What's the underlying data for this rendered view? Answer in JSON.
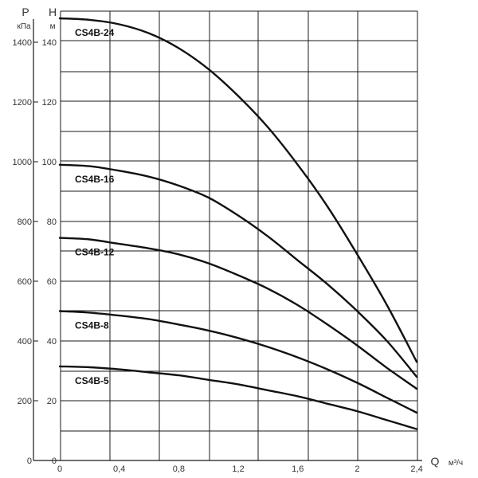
{
  "chart_data": {
    "type": "line",
    "colors": {
      "line": "#111111",
      "grid": "#1a1a1a",
      "background": "#ffffff"
    },
    "x_axis": {
      "label": "Q",
      "unit": "м³/ч",
      "range": [
        0,
        2.4
      ],
      "ticks": [
        "0",
        "0,4",
        "0,8",
        "1,2",
        "1,6",
        "2",
        "2,4"
      ]
    },
    "y_axis_head": {
      "label": "H",
      "unit": "м",
      "range": [
        0,
        150
      ],
      "ticks": [
        "0",
        "20",
        "40",
        "60",
        "80",
        "100",
        "120",
        "140"
      ]
    },
    "y_axis_pressure": {
      "label": "P",
      "unit": "кПа",
      "range": [
        0,
        1500
      ],
      "ticks": [
        "0",
        "200",
        "400",
        "600",
        "800",
        "1000",
        "1200",
        "1400"
      ]
    },
    "grid": true,
    "series": [
      {
        "name": "CS4B-24",
        "x": [
          0,
          0.2,
          0.4,
          0.6,
          0.8,
          1.0,
          1.2,
          1.4,
          1.6,
          1.8,
          2.0,
          2.2,
          2.4
        ],
        "y": [
          148,
          147.5,
          146,
          143,
          138,
          131,
          122,
          111.5,
          99,
          85,
          69,
          52,
          33
        ]
      },
      {
        "name": "CS4B-16",
        "x": [
          0,
          0.2,
          0.4,
          0.6,
          0.8,
          1.0,
          1.2,
          1.4,
          1.6,
          1.8,
          2.0,
          2.2,
          2.4
        ],
        "y": [
          99,
          98.5,
          97,
          95,
          92,
          88,
          82,
          75,
          67,
          59,
          50,
          40,
          28
        ]
      },
      {
        "name": "CS4B-12",
        "x": [
          0,
          0.2,
          0.4,
          0.6,
          0.8,
          1.0,
          1.2,
          1.4,
          1.6,
          1.8,
          2.0,
          2.2,
          2.4
        ],
        "y": [
          74.5,
          74,
          72.5,
          71,
          69,
          66,
          62,
          57.5,
          52,
          45.5,
          38.5,
          31,
          24
        ]
      },
      {
        "name": "CS4B-8",
        "x": [
          0,
          0.2,
          0.4,
          0.6,
          0.8,
          1.0,
          1.2,
          1.4,
          1.6,
          1.8,
          2.0,
          2.2,
          2.4
        ],
        "y": [
          50,
          49.5,
          48.5,
          47.3,
          45.5,
          43.5,
          41,
          38,
          34.5,
          30.5,
          26,
          21,
          16
        ]
      },
      {
        "name": "CS4B-5",
        "x": [
          0,
          0.2,
          0.4,
          0.6,
          0.8,
          1.0,
          1.2,
          1.4,
          1.6,
          1.8,
          2.0,
          2.2,
          2.4
        ],
        "y": [
          31.5,
          31.2,
          30.5,
          29.5,
          28.5,
          27,
          25.5,
          23.5,
          21.5,
          19,
          16.5,
          13.5,
          10.5
        ]
      }
    ]
  }
}
